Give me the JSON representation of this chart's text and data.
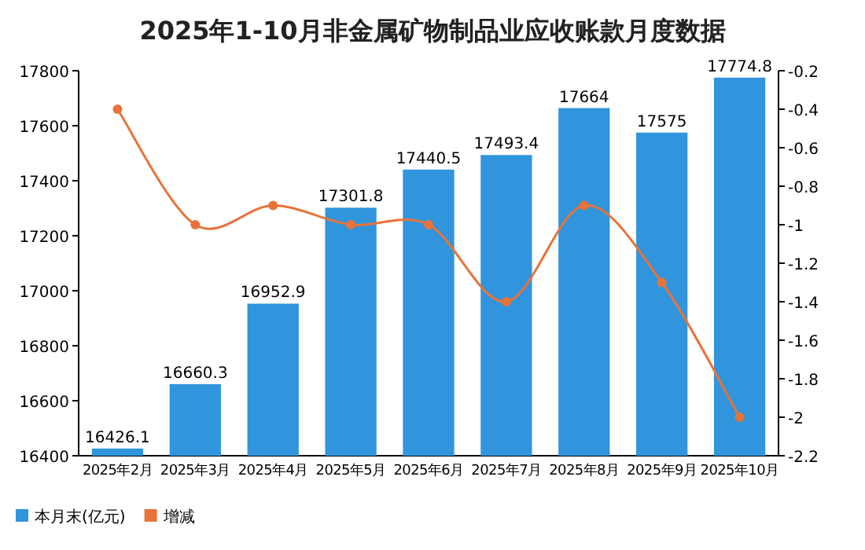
{
  "chart_data": {
    "type": "bar",
    "title": "2025年1-10月非金属矿物制品业应收账款月度数据",
    "categories": [
      "2025年2月",
      "2025年3月",
      "2025年4月",
      "2025年5月",
      "2025年6月",
      "2025年7月",
      "2025年8月",
      "2025年9月",
      "2025年10月"
    ],
    "series": [
      {
        "name": "本月末(亿元)",
        "color": "#3095dc",
        "values": [
          16426.1,
          16660.3,
          16952.9,
          17301.8,
          17440.5,
          17493.4,
          17664,
          17575,
          17774.8
        ],
        "value_labels": [
          "16426.1",
          "16660.3",
          "16952.9",
          "17301.8",
          "17440.5",
          "17493.4",
          "17664",
          "17575",
          "17774.8"
        ]
      },
      {
        "name": "增减",
        "type": "line",
        "axis": "y2",
        "color": "#e8733a",
        "values": [
          -0.4,
          -1.0,
          -0.9,
          -1.0,
          -1.0,
          -1.4,
          -0.9,
          -1.3,
          -2.0
        ]
      }
    ],
    "ylim": [
      16400,
      17800
    ],
    "yticks": [
      16400,
      16600,
      16800,
      17000,
      17200,
      17400,
      17600,
      17800
    ],
    "y2lim": [
      -2.2,
      -0.2
    ],
    "y2ticks": [
      -2.2,
      -2,
      -1.8,
      -1.6,
      -1.4,
      -1.2,
      -1,
      -0.8,
      -0.6,
      -0.4,
      -0.2
    ],
    "marker": "circle",
    "grid": false,
    "legend": "bottom left"
  }
}
